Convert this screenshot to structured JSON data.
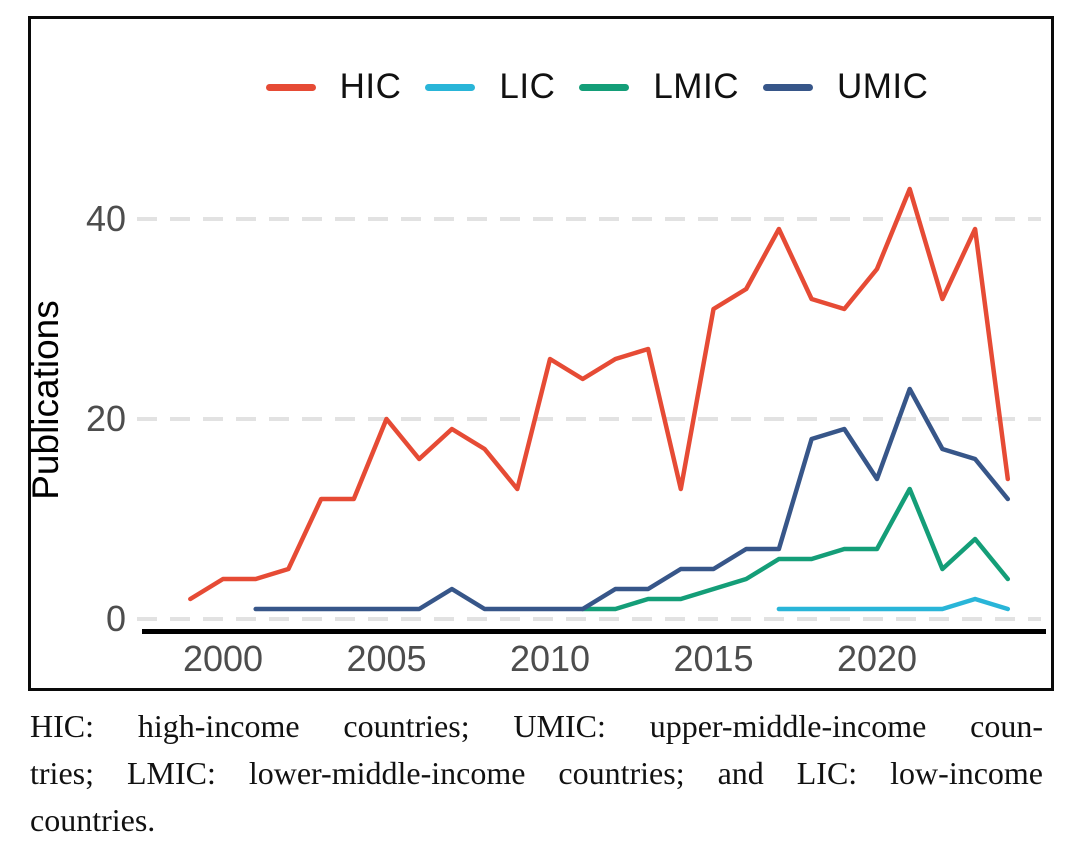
{
  "figure": {
    "caption_lines": [
      "HIC: high-income countries; UMIC: upper-middle-income coun-",
      "tries; LMIC: lower-middle-income countries; and LIC: low-income",
      "countries."
    ]
  },
  "colors": {
    "hic": "#E64B35",
    "lic": "#29B5D8",
    "lmic": "#149E78",
    "umic": "#375689",
    "gridline": "#E2E2E2",
    "tick_text": "#4D4D4D",
    "axis_line": "#000000"
  },
  "chart_data": {
    "type": "line",
    "title": "",
    "xlabel": "",
    "ylabel": "Publications",
    "x_ticks": [
      2000,
      2005,
      2010,
      2015,
      2020
    ],
    "y_ticks": [
      0,
      20,
      40
    ],
    "xlim": [
      1998,
      2025
    ],
    "ylim": [
      0,
      45
    ],
    "grid": "horizontal dashed lines at y ticks",
    "legend_position": "top-center",
    "legend_order": [
      "HIC",
      "LIC",
      "LMIC",
      "UMIC"
    ],
    "draw_order": [
      "LIC",
      "LMIC",
      "UMIC",
      "HIC"
    ],
    "series": [
      {
        "name": "HIC",
        "color": "#E64B35",
        "points": [
          [
            1999,
            2
          ],
          [
            2000,
            4
          ],
          [
            2001,
            4
          ],
          [
            2002,
            5
          ],
          [
            2003,
            12
          ],
          [
            2004,
            12
          ],
          [
            2005,
            20
          ],
          [
            2006,
            16
          ],
          [
            2007,
            19
          ],
          [
            2008,
            17
          ],
          [
            2009,
            13
          ],
          [
            2010,
            26
          ],
          [
            2011,
            24
          ],
          [
            2012,
            26
          ],
          [
            2013,
            27
          ],
          [
            2014,
            13
          ],
          [
            2015,
            31
          ],
          [
            2016,
            33
          ],
          [
            2017,
            39
          ],
          [
            2018,
            32
          ],
          [
            2019,
            31
          ],
          [
            2020,
            35
          ],
          [
            2021,
            43
          ],
          [
            2022,
            32
          ],
          [
            2023,
            39
          ],
          [
            2024,
            14
          ]
        ]
      },
      {
        "name": "LIC",
        "color": "#29B5D8",
        "points": [
          [
            2017,
            1
          ],
          [
            2018,
            1
          ],
          [
            2019,
            1
          ],
          [
            2020,
            1
          ],
          [
            2021,
            1
          ],
          [
            2022,
            1
          ],
          [
            2023,
            2
          ],
          [
            2024,
            1
          ]
        ]
      },
      {
        "name": "LMIC",
        "color": "#149E78",
        "points": [
          [
            2011,
            1
          ],
          [
            2012,
            1
          ],
          [
            2013,
            2
          ],
          [
            2014,
            2
          ],
          [
            2015,
            3
          ],
          [
            2016,
            4
          ],
          [
            2017,
            6
          ],
          [
            2018,
            6
          ],
          [
            2019,
            7
          ],
          [
            2020,
            7
          ],
          [
            2021,
            13
          ],
          [
            2022,
            5
          ],
          [
            2023,
            8
          ],
          [
            2024,
            4
          ]
        ]
      },
      {
        "name": "UMIC",
        "color": "#375689",
        "points": [
          [
            2001,
            1
          ],
          [
            2002,
            1
          ],
          [
            2003,
            1
          ],
          [
            2004,
            1
          ],
          [
            2005,
            1
          ],
          [
            2006,
            1
          ],
          [
            2007,
            3
          ],
          [
            2008,
            1
          ],
          [
            2009,
            1
          ],
          [
            2010,
            1
          ],
          [
            2011,
            1
          ],
          [
            2012,
            3
          ],
          [
            2013,
            3
          ],
          [
            2014,
            5
          ],
          [
            2015,
            5
          ],
          [
            2016,
            7
          ],
          [
            2017,
            7
          ],
          [
            2018,
            18
          ],
          [
            2019,
            19
          ],
          [
            2020,
            14
          ],
          [
            2021,
            23
          ],
          [
            2022,
            17
          ],
          [
            2023,
            16
          ],
          [
            2024,
            12
          ]
        ]
      }
    ]
  }
}
